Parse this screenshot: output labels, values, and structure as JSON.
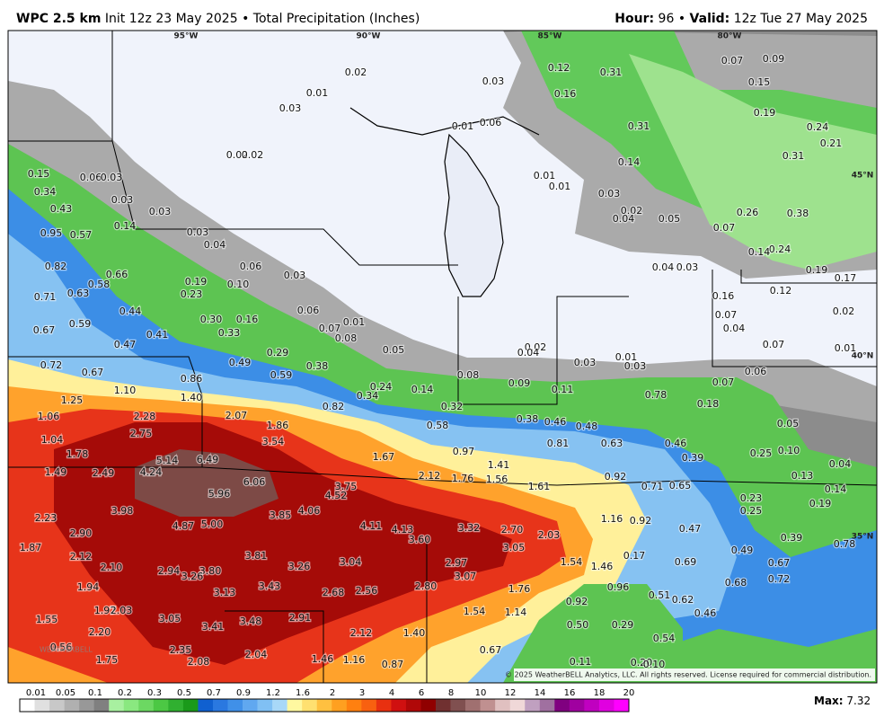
{
  "header": {
    "title": "WPC 2.5 km",
    "subtitle": "Init 12z 23 May 2025 • Total Precipitation (Inches)",
    "hour_label": "Hour:",
    "hour": "96",
    "separator": "•",
    "valid_label": "Valid:",
    "valid": "12z Tue 27 May 2025"
  },
  "longitudes": [
    "95°W",
    "90°W",
    "85°W",
    "80°W"
  ],
  "latitudes": [
    "45°N",
    "40°N",
    "35°N"
  ],
  "map_labels": [
    "0.02",
    "0.01",
    "0.03",
    "0.03",
    "0.12",
    "0.31",
    "0.07",
    "0.09",
    "0.15",
    "0.16",
    "0.19",
    "0.01",
    "0.06",
    "0.31",
    "0.24",
    "0.21",
    "0.02",
    "0.02",
    "0.31",
    "0.14",
    "0.15",
    "0.06",
    "0.03",
    "0.01",
    "0.01",
    "0.03",
    "0.34",
    "0.03",
    "0.43",
    "0.03",
    "0.02",
    "0.04",
    "0.05",
    "0.26",
    "0.38",
    "0.14",
    "0.95",
    "0.57",
    "0.03",
    "0.07",
    "0.04",
    "0.24",
    "0.14",
    "0.82",
    "0.06",
    "0.04",
    "0.03",
    "0.19",
    "0.66",
    "0.03",
    "0.19",
    "0.17",
    "0.58",
    "0.10",
    "0.12",
    "0.23",
    "0.71",
    "0.63",
    "0.16",
    "0.44",
    "0.06",
    "0.07",
    "0.02",
    "0.30",
    "0.16",
    "0.01",
    "0.59",
    "0.07",
    "0.04",
    "0.67",
    "0.41",
    "0.33",
    "0.08",
    "0.47",
    "0.05",
    "0.02",
    "0.04",
    "0.29",
    "0.07",
    "0.01",
    "0.01",
    "0.72",
    "0.03",
    "0.03",
    "0.49",
    "0.38",
    "0.67",
    "0.06",
    "0.08",
    "0.59",
    "0.86",
    "0.09",
    "0.24",
    "0.07",
    "0.14",
    "1.10",
    "0.11",
    "0.34",
    "0.78",
    "1.40",
    "0.18",
    "1.25",
    "0.82",
    "0.32",
    "2.28",
    "2.07",
    "1.06",
    "0.38",
    "0.46",
    "0.48",
    "0.58",
    "0.05",
    "1.86",
    "2.75",
    "3.54",
    "1.04",
    "0.81",
    "0.63",
    "0.46",
    "0.10",
    "0.97",
    "0.25",
    "0.39",
    "1.78",
    "5.14",
    "6.49",
    "1.67",
    "1.41",
    "0.04",
    "4.24",
    "2.49",
    "1.49",
    "2.12",
    "1.76",
    "1.56",
    "0.92",
    "0.13",
    "6.06",
    "3.75",
    "1.61",
    "0.71",
    "0.65",
    "0.14",
    "5.96",
    "4.52",
    "0.23",
    "0.19",
    "3.98",
    "4.06",
    "3.85",
    "0.25",
    "2.23",
    "4.87",
    "5.00",
    "4.11",
    "4.13",
    "3.32",
    "2.70",
    "1.16",
    "0.92",
    "0.47",
    "2.90",
    "2.03",
    "3.60",
    "0.39",
    "3.05",
    "0.78",
    "1.87",
    "3.81",
    "2.12",
    "0.49",
    "0.17",
    "1.54",
    "1.46",
    "3.04",
    "2.97",
    "0.69",
    "0.67",
    "2.10",
    "2.94",
    "3.80",
    "3.26",
    "3.26",
    "3.07",
    "0.72",
    "0.68",
    "1.94",
    "3.43",
    "1.76",
    "2.80",
    "0.96",
    "2.68",
    "2.56",
    "3.13",
    "0.51",
    "0.62",
    "0.92",
    "1.97",
    "2.03",
    "1.54",
    "1.14",
    "0.46",
    "1.55",
    "3.05",
    "3.48",
    "2.91",
    "3.41",
    "0.50",
    "0.29",
    "2.20",
    "2.12",
    "1.40",
    "0.54",
    "2.35",
    "0.67",
    "2.04",
    "0.56",
    "1.75",
    "2.08",
    "1.46",
    "1.16",
    "0.87",
    "0.11",
    "0.20",
    "0.10"
  ],
  "logo": "WEATHERBELL",
  "copyright": "© 2025 WeatherBELL Analytics, LLC. All rights reserved. License required for commercial distribution.",
  "colorbar": {
    "labels": [
      0.01,
      0.05,
      0.1,
      0.2,
      0.3,
      0.5,
      0.7,
      0.9,
      1.2,
      1.6,
      2,
      3,
      4,
      6,
      8,
      10,
      12,
      14,
      16,
      18,
      20
    ]
  },
  "max": {
    "label": "Max:",
    "value": "7.32"
  }
}
